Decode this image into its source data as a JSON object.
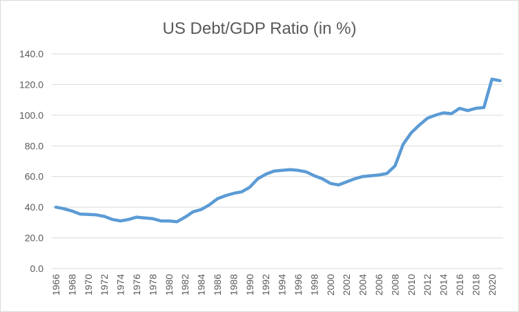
{
  "chart_data": {
    "type": "line",
    "title": "US Debt/GDP Ratio (in %)",
    "xlabel": "",
    "ylabel": "",
    "ylim": [
      0,
      140
    ],
    "yticks": [
      "0.0",
      "20.0",
      "40.0",
      "60.0",
      "80.0",
      "100.0",
      "120.0",
      "140.0"
    ],
    "grid": true,
    "line_color": "#5B9BD5",
    "x": [
      1966,
      1967,
      1968,
      1969,
      1970,
      1971,
      1972,
      1973,
      1974,
      1975,
      1976,
      1977,
      1978,
      1979,
      1980,
      1981,
      1982,
      1983,
      1984,
      1985,
      1986,
      1987,
      1988,
      1989,
      1990,
      1991,
      1992,
      1993,
      1994,
      1995,
      1996,
      1997,
      1998,
      1999,
      2000,
      2001,
      2002,
      2003,
      2004,
      2005,
      2006,
      2007,
      2008,
      2009,
      2010,
      2011,
      2012,
      2013,
      2014,
      2015,
      2016,
      2017,
      2018,
      2019,
      2020,
      2021
    ],
    "series": [
      {
        "name": "Debt/GDP",
        "values": [
          40,
          39,
          37.5,
          35.5,
          35.3,
          35,
          34,
          32,
          31,
          32,
          33.5,
          33,
          32.5,
          31,
          31,
          30.5,
          33.5,
          37,
          38.5,
          41.5,
          45.5,
          47.5,
          49,
          50,
          53,
          58.5,
          61.5,
          63.5,
          64,
          64.5,
          64,
          63,
          60.5,
          58.5,
          55.5,
          54.5,
          56.5,
          58.5,
          60,
          60.5,
          61,
          62,
          67,
          81,
          88.5,
          93.5,
          98,
          100,
          101.5,
          101,
          104.5,
          103,
          104.5,
          105,
          123.5,
          122.5
        ]
      }
    ],
    "xtick_labels": [
      "1966",
      "1968",
      "1970",
      "1972",
      "1974",
      "1976",
      "1978",
      "1980",
      "1982",
      "1984",
      "1986",
      "1988",
      "1990",
      "1992",
      "1994",
      "1996",
      "1998",
      "2000",
      "2002",
      "2004",
      "2006",
      "2008",
      "2010",
      "2012",
      "2014",
      "2016",
      "2018",
      "2020"
    ]
  }
}
